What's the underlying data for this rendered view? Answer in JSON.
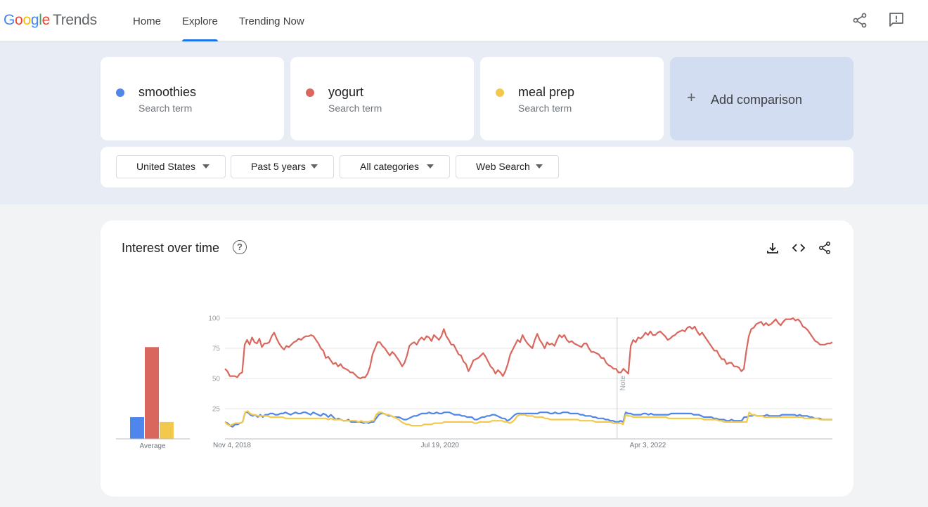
{
  "header": {
    "logo_word": "Google",
    "logo_product": "Trends",
    "nav": [
      {
        "label": "Home",
        "active": false
      },
      {
        "label": "Explore",
        "active": true
      },
      {
        "label": "Trending Now",
        "active": false
      }
    ],
    "icons": [
      "share-icon",
      "feedback-icon"
    ]
  },
  "terms": [
    {
      "name": "smoothies",
      "sub": "Search term",
      "color": "#4f86ec"
    },
    {
      "name": "yogurt",
      "sub": "Search term",
      "color": "#d9675d"
    },
    {
      "name": "meal prep",
      "sub": "Search term",
      "color": "#f2c94c"
    }
  ],
  "add_comparison": {
    "icon": "+",
    "label": "Add comparison"
  },
  "filters": [
    {
      "label": "United States"
    },
    {
      "label": "Past 5 years"
    },
    {
      "label": "All categories"
    },
    {
      "label": "Web Search"
    }
  ],
  "interest": {
    "title": "Interest over time",
    "help": "?",
    "actions": [
      "download-icon",
      "embed-icon",
      "share-icon"
    ],
    "average_label": "Average",
    "note_label": "Note"
  },
  "chart_data": {
    "type": "line",
    "y_ticks": [
      "100",
      "75",
      "50",
      "25"
    ],
    "ylim": [
      0,
      100
    ],
    "x_ticks": [
      "Nov 4, 2018",
      "Jul 19, 2020",
      "Apr 3, 2022"
    ],
    "x_range": [
      "2018-10-14",
      "2023-10-08"
    ],
    "grid": true,
    "averages": [
      {
        "series": "smoothies",
        "value": 18
      },
      {
        "series": "yogurt",
        "value": 76
      },
      {
        "series": "meal prep",
        "value": 14
      }
    ],
    "series": [
      {
        "name": "yogurt",
        "color": "#d9675d",
        "values": [
          58,
          56,
          52,
          52,
          52,
          51,
          54,
          55,
          78,
          82,
          78,
          84,
          80,
          79,
          83,
          76,
          79,
          79,
          80,
          85,
          88,
          83,
          79,
          76,
          74,
          77,
          76,
          78,
          80,
          81,
          83,
          82,
          84,
          85,
          85,
          86,
          85,
          82,
          79,
          75,
          73,
          67,
          68,
          65,
          62,
          63,
          60,
          62,
          59,
          58,
          57,
          55,
          55,
          53,
          51,
          50,
          51,
          51,
          54,
          60,
          70,
          75,
          80,
          80,
          77,
          75,
          72,
          69,
          72,
          70,
          67,
          64,
          60,
          63,
          69,
          77,
          79,
          80,
          78,
          82,
          84,
          82,
          85,
          84,
          81,
          86,
          84,
          82,
          85,
          91,
          85,
          82,
          78,
          78,
          74,
          70,
          69,
          64,
          62,
          56,
          60,
          65,
          66,
          67,
          69,
          71,
          68,
          64,
          60,
          58,
          54,
          57,
          55,
          52,
          56,
          62,
          70,
          74,
          78,
          82,
          80,
          86,
          82,
          79,
          77,
          75,
          82,
          87,
          82,
          79,
          75,
          80,
          78,
          79,
          77,
          82,
          86,
          84,
          86,
          82,
          80,
          81,
          79,
          78,
          77,
          76,
          79,
          79,
          75,
          72,
          72,
          71,
          70,
          67,
          67,
          63,
          61,
          60,
          58,
          58,
          55,
          55,
          58,
          56,
          54,
          77,
          82,
          80,
          84,
          83,
          85,
          88,
          86,
          89,
          86,
          86,
          88,
          89,
          87,
          85,
          82,
          83,
          85,
          86,
          88,
          89,
          90,
          89,
          92,
          93,
          91,
          93,
          89,
          86,
          88,
          85,
          82,
          79,
          76,
          73,
          73,
          69,
          66,
          66,
          62,
          63,
          63,
          60,
          60,
          59,
          56,
          58,
          73,
          85,
          91,
          92,
          95,
          96,
          97,
          94,
          96,
          94,
          95,
          97,
          99,
          96,
          94,
          97,
          99,
          99,
          99,
          100,
          98,
          99,
          97,
          93,
          92,
          90,
          87,
          84,
          81,
          80,
          78,
          78,
          78,
          79,
          79,
          80
        ]
      },
      {
        "name": "smoothies",
        "color": "#4f86ec",
        "values": [
          14,
          13,
          11,
          10,
          12,
          12,
          13,
          14,
          22,
          22,
          20,
          19,
          20,
          18,
          20,
          18,
          20,
          20,
          21,
          21,
          20,
          20,
          21,
          21,
          22,
          21,
          20,
          21,
          22,
          21,
          21,
          22,
          22,
          21,
          20,
          22,
          21,
          20,
          19,
          21,
          20,
          18,
          20,
          18,
          16,
          17,
          16,
          15,
          15,
          16,
          14,
          14,
          14,
          14,
          14,
          13,
          14,
          13,
          14,
          14,
          17,
          20,
          21,
          21,
          20,
          19,
          19,
          18,
          18,
          18,
          17,
          16,
          16,
          17,
          18,
          19,
          19,
          20,
          21,
          21,
          21,
          22,
          21,
          21,
          22,
          21,
          21,
          22,
          22,
          22,
          21,
          20,
          20,
          20,
          19,
          19,
          18,
          18,
          18,
          16,
          16,
          17,
          18,
          18,
          19,
          19,
          20,
          20,
          19,
          18,
          17,
          17,
          15,
          16,
          18,
          20,
          21,
          21,
          21,
          21,
          21,
          21,
          21,
          21,
          21,
          22,
          22,
          22,
          22,
          21,
          21,
          22,
          21,
          21,
          22,
          22,
          22,
          21,
          21,
          21,
          21,
          20,
          20,
          19,
          19,
          19,
          18,
          18,
          17,
          17,
          17,
          16,
          16,
          15,
          15,
          14,
          14,
          15,
          14,
          22,
          21,
          21,
          20,
          20,
          20,
          20,
          21,
          21,
          20,
          21,
          20,
          20,
          20,
          20,
          20,
          20,
          20,
          21,
          21,
          21,
          21,
          21,
          21,
          21,
          21,
          21,
          20,
          20,
          20,
          19,
          18,
          18,
          18,
          18,
          17,
          17,
          16,
          16,
          16,
          15,
          15,
          16,
          15,
          15,
          15,
          15,
          18,
          18,
          19,
          19,
          20,
          19,
          19,
          19,
          19,
          20,
          19,
          19,
          19,
          19,
          19,
          20,
          20,
          20,
          20,
          20,
          20,
          19,
          20,
          19,
          19,
          19,
          18,
          18,
          17,
          17,
          17,
          16,
          16,
          16,
          16,
          16
        ]
      },
      {
        "name": "meal prep",
        "color": "#f2c94c",
        "values": [
          14,
          12,
          11,
          12,
          13,
          13,
          13,
          14,
          22,
          23,
          21,
          20,
          20,
          19,
          19,
          19,
          19,
          19,
          18,
          18,
          18,
          18,
          18,
          18,
          17,
          17,
          17,
          17,
          17,
          17,
          17,
          17,
          17,
          17,
          17,
          17,
          17,
          17,
          17,
          17,
          17,
          16,
          17,
          16,
          16,
          16,
          16,
          15,
          15,
          15,
          15,
          15,
          15,
          14,
          15,
          14,
          14,
          14,
          15,
          15,
          20,
          22,
          22,
          21,
          20,
          20,
          19,
          18,
          17,
          16,
          14,
          13,
          12,
          12,
          11,
          11,
          11,
          11,
          11,
          12,
          12,
          12,
          12,
          13,
          13,
          13,
          13,
          14,
          14,
          14,
          14,
          14,
          14,
          14,
          14,
          14,
          14,
          14,
          14,
          13,
          13,
          14,
          14,
          14,
          14,
          14,
          15,
          15,
          15,
          15,
          15,
          14,
          14,
          13,
          14,
          16,
          19,
          20,
          20,
          20,
          19,
          19,
          19,
          18,
          18,
          18,
          18,
          17,
          17,
          16,
          16,
          16,
          16,
          16,
          16,
          16,
          16,
          16,
          16,
          16,
          16,
          15,
          15,
          15,
          15,
          15,
          15,
          14,
          14,
          14,
          14,
          14,
          14,
          14,
          13,
          13,
          13,
          13,
          12,
          20,
          19,
          19,
          18,
          18,
          18,
          18,
          18,
          18,
          18,
          18,
          18,
          18,
          18,
          18,
          18,
          18,
          17,
          17,
          17,
          17,
          17,
          17,
          17,
          17,
          17,
          17,
          17,
          17,
          17,
          17,
          16,
          16,
          16,
          16,
          16,
          16,
          15,
          15,
          14,
          14,
          14,
          14,
          14,
          14,
          14,
          14,
          14,
          14,
          22,
          20,
          20,
          19,
          19,
          19,
          18,
          18,
          18,
          18,
          18,
          18,
          18,
          18,
          18,
          18,
          18,
          18,
          18,
          18,
          18,
          18,
          17,
          17,
          17,
          17,
          17,
          17,
          16,
          16,
          16,
          16,
          16,
          16
        ]
      }
    ]
  }
}
